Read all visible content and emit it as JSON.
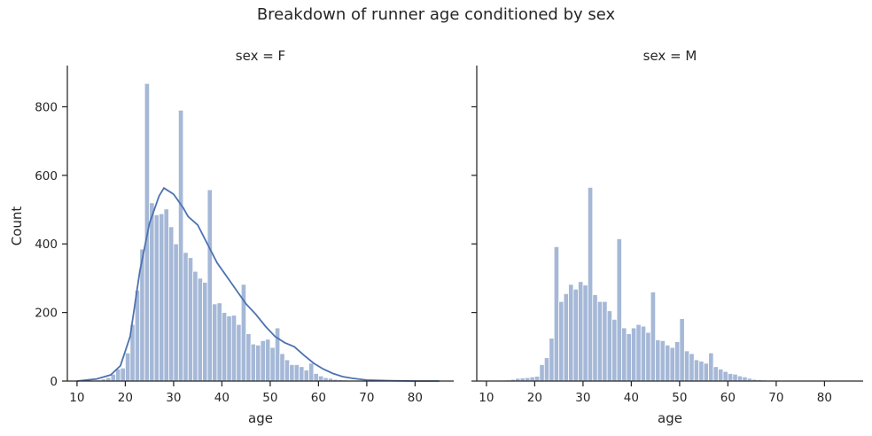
{
  "chart_data": {
    "type": "bar",
    "suptitle": "Breakdown of runner age conditioned by sex",
    "xlabel": "age",
    "ylabel": "Count",
    "xlim": [
      8,
      88
    ],
    "ylim": [
      0,
      915
    ],
    "xticks": [
      10,
      20,
      30,
      40,
      50,
      60,
      70,
      80
    ],
    "yticks": [
      0,
      200,
      400,
      600,
      800
    ],
    "bin_start": 14,
    "bin_width": 1,
    "grid": false,
    "colors": {
      "bar": "#4c72b0",
      "line": "#4c72b0",
      "axis": "#262626"
    },
    "panels": [
      {
        "title": "sex = F",
        "values": [
          3,
          6,
          10,
          20,
          35,
          38,
          82,
          165,
          265,
          385,
          868,
          520,
          485,
          488,
          502,
          450,
          400,
          790,
          375,
          360,
          320,
          300,
          288,
          558,
          225,
          228,
          200,
          190,
          192,
          165,
          282,
          138,
          108,
          105,
          118,
          122,
          98,
          155,
          80,
          62,
          48,
          48,
          42,
          32,
          52,
          22,
          15,
          10,
          8,
          5,
          4,
          3
        ],
        "kde": [
          [
            10,
            0
          ],
          [
            14,
            6
          ],
          [
            17,
            18
          ],
          [
            19,
            45
          ],
          [
            21,
            130
          ],
          [
            23,
            320
          ],
          [
            25,
            460
          ],
          [
            27,
            540
          ],
          [
            28,
            563
          ],
          [
            30,
            545
          ],
          [
            32,
            505
          ],
          [
            33,
            480
          ],
          [
            35,
            455
          ],
          [
            37,
            400
          ],
          [
            39,
            345
          ],
          [
            41,
            305
          ],
          [
            43,
            265
          ],
          [
            45,
            225
          ],
          [
            47,
            195
          ],
          [
            49,
            160
          ],
          [
            51,
            130
          ],
          [
            53,
            112
          ],
          [
            55,
            100
          ],
          [
            57,
            75
          ],
          [
            59,
            52
          ],
          [
            61,
            35
          ],
          [
            63,
            22
          ],
          [
            65,
            13
          ],
          [
            67,
            8
          ],
          [
            70,
            3
          ],
          [
            75,
            1
          ],
          [
            80,
            0
          ],
          [
            85,
            0
          ]
        ]
      },
      {
        "title": "sex = M",
        "values": [
          3,
          5,
          8,
          9,
          10,
          12,
          14,
          48,
          68,
          125,
          392,
          232,
          255,
          282,
          268,
          290,
          280,
          565,
          252,
          232,
          232,
          205,
          180,
          415,
          155,
          138,
          155,
          165,
          160,
          142,
          260,
          120,
          118,
          105,
          98,
          115,
          182,
          88,
          80,
          62,
          58,
          52,
          82,
          42,
          35,
          28,
          22,
          20,
          15,
          12,
          8,
          5,
          4,
          3,
          2,
          1
        ]
      }
    ]
  }
}
